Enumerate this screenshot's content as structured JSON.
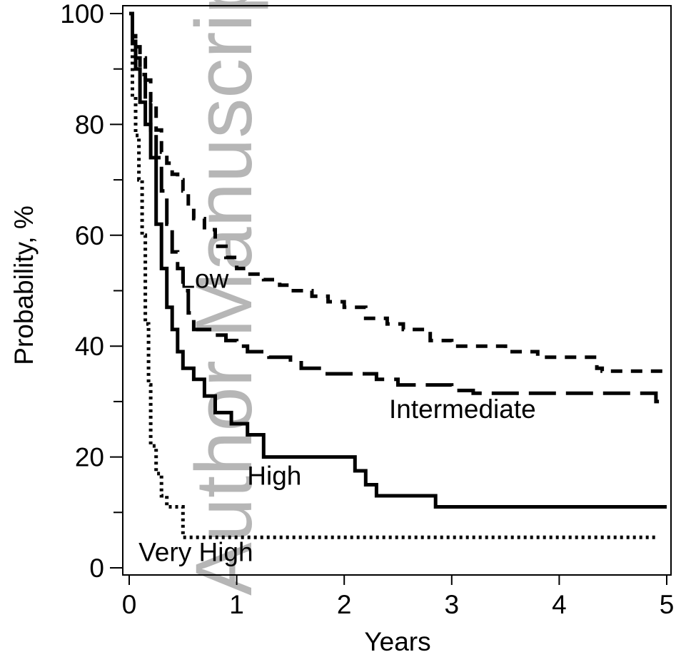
{
  "chart_data": {
    "type": "line",
    "title": "",
    "xlabel": "Years",
    "ylabel": "Probability, %",
    "xlim": [
      0,
      5
    ],
    "ylim": [
      0,
      100
    ],
    "xticks": [
      0,
      1,
      2,
      3,
      4,
      5
    ],
    "xtick_labels": [
      "0",
      "1",
      "2",
      "3",
      "4",
      "5"
    ],
    "yticks": [
      0,
      20,
      40,
      60,
      80,
      100
    ],
    "ytick_labels": [
      "0",
      "20",
      "40",
      "60",
      "80",
      "100"
    ],
    "y_minor_ticks": [
      10,
      30,
      50,
      70,
      90
    ],
    "grid": false,
    "legend": "none (series labeled inline)",
    "watermark": "Author Manuscript",
    "series": [
      {
        "name": "Low",
        "style": "short-dash",
        "color": "#000000",
        "x": [
          0.0,
          0.03,
          0.06,
          0.1,
          0.15,
          0.2,
          0.25,
          0.3,
          0.35,
          0.4,
          0.45,
          0.5,
          0.55,
          0.6,
          0.7,
          0.8,
          0.9,
          1.0,
          1.1,
          1.25,
          1.4,
          1.5,
          1.7,
          1.85,
          2.0,
          2.2,
          2.4,
          2.55,
          2.8,
          3.0,
          3.2,
          3.5,
          3.8,
          4.3,
          4.35,
          4.4,
          5.0
        ],
        "y": [
          100,
          96,
          94,
          92,
          88,
          84,
          79,
          75,
          73,
          71,
          70,
          68,
          65,
          63,
          61,
          58,
          56,
          54,
          53,
          52,
          51,
          50,
          49,
          48,
          47,
          45,
          44,
          43,
          41,
          40,
          40,
          39,
          38,
          38,
          36,
          35.5,
          35.5
        ]
      },
      {
        "name": "Intermediate",
        "style": "long-dash",
        "color": "#000000",
        "x": [
          0.0,
          0.03,
          0.06,
          0.1,
          0.15,
          0.2,
          0.25,
          0.3,
          0.35,
          0.4,
          0.45,
          0.5,
          0.55,
          0.6,
          0.8,
          0.9,
          1.0,
          1.1,
          1.3,
          1.5,
          1.6,
          1.8,
          2.0,
          2.3,
          2.5,
          2.7,
          3.0,
          3.2,
          4.0,
          4.9,
          5.0
        ],
        "y": [
          100,
          95,
          92,
          89,
          84,
          79,
          74,
          68,
          62,
          57,
          54,
          50,
          46,
          43,
          42,
          41,
          40,
          39,
          38,
          37,
          36,
          35,
          35,
          34,
          33,
          33,
          32,
          31.5,
          31.5,
          30,
          30
        ]
      },
      {
        "name": "High",
        "style": "solid",
        "color": "#000000",
        "x": [
          0.0,
          0.03,
          0.06,
          0.1,
          0.15,
          0.2,
          0.25,
          0.3,
          0.35,
          0.4,
          0.45,
          0.5,
          0.6,
          0.7,
          0.8,
          0.95,
          1.1,
          1.25,
          1.5,
          2.1,
          2.2,
          2.3,
          2.85,
          5.0
        ],
        "y": [
          100,
          95,
          90,
          84,
          80,
          74,
          62,
          54,
          47,
          43,
          39,
          36,
          34,
          31,
          28,
          26,
          24,
          20,
          20,
          17.5,
          15,
          13,
          11,
          11
        ]
      },
      {
        "name": "Very High",
        "style": "dotted",
        "color": "#000000",
        "x": [
          0.0,
          0.03,
          0.06,
          0.09,
          0.12,
          0.15,
          0.18,
          0.2,
          0.25,
          0.3,
          0.35,
          0.45,
          0.5,
          4.9
        ],
        "y": [
          100,
          85,
          78,
          70,
          60,
          44,
          33,
          22,
          17,
          13,
          11,
          11,
          5.5,
          5.5
        ]
      }
    ],
    "annotations": [
      {
        "text": "Low",
        "x": 0.7,
        "y": 50.5
      },
      {
        "text": "Intermediate",
        "x": 3.1,
        "y": 27
      },
      {
        "text": "High",
        "x": 1.35,
        "y": 15
      },
      {
        "text": "Very High",
        "x": 0.62,
        "y": 1.2
      }
    ]
  }
}
